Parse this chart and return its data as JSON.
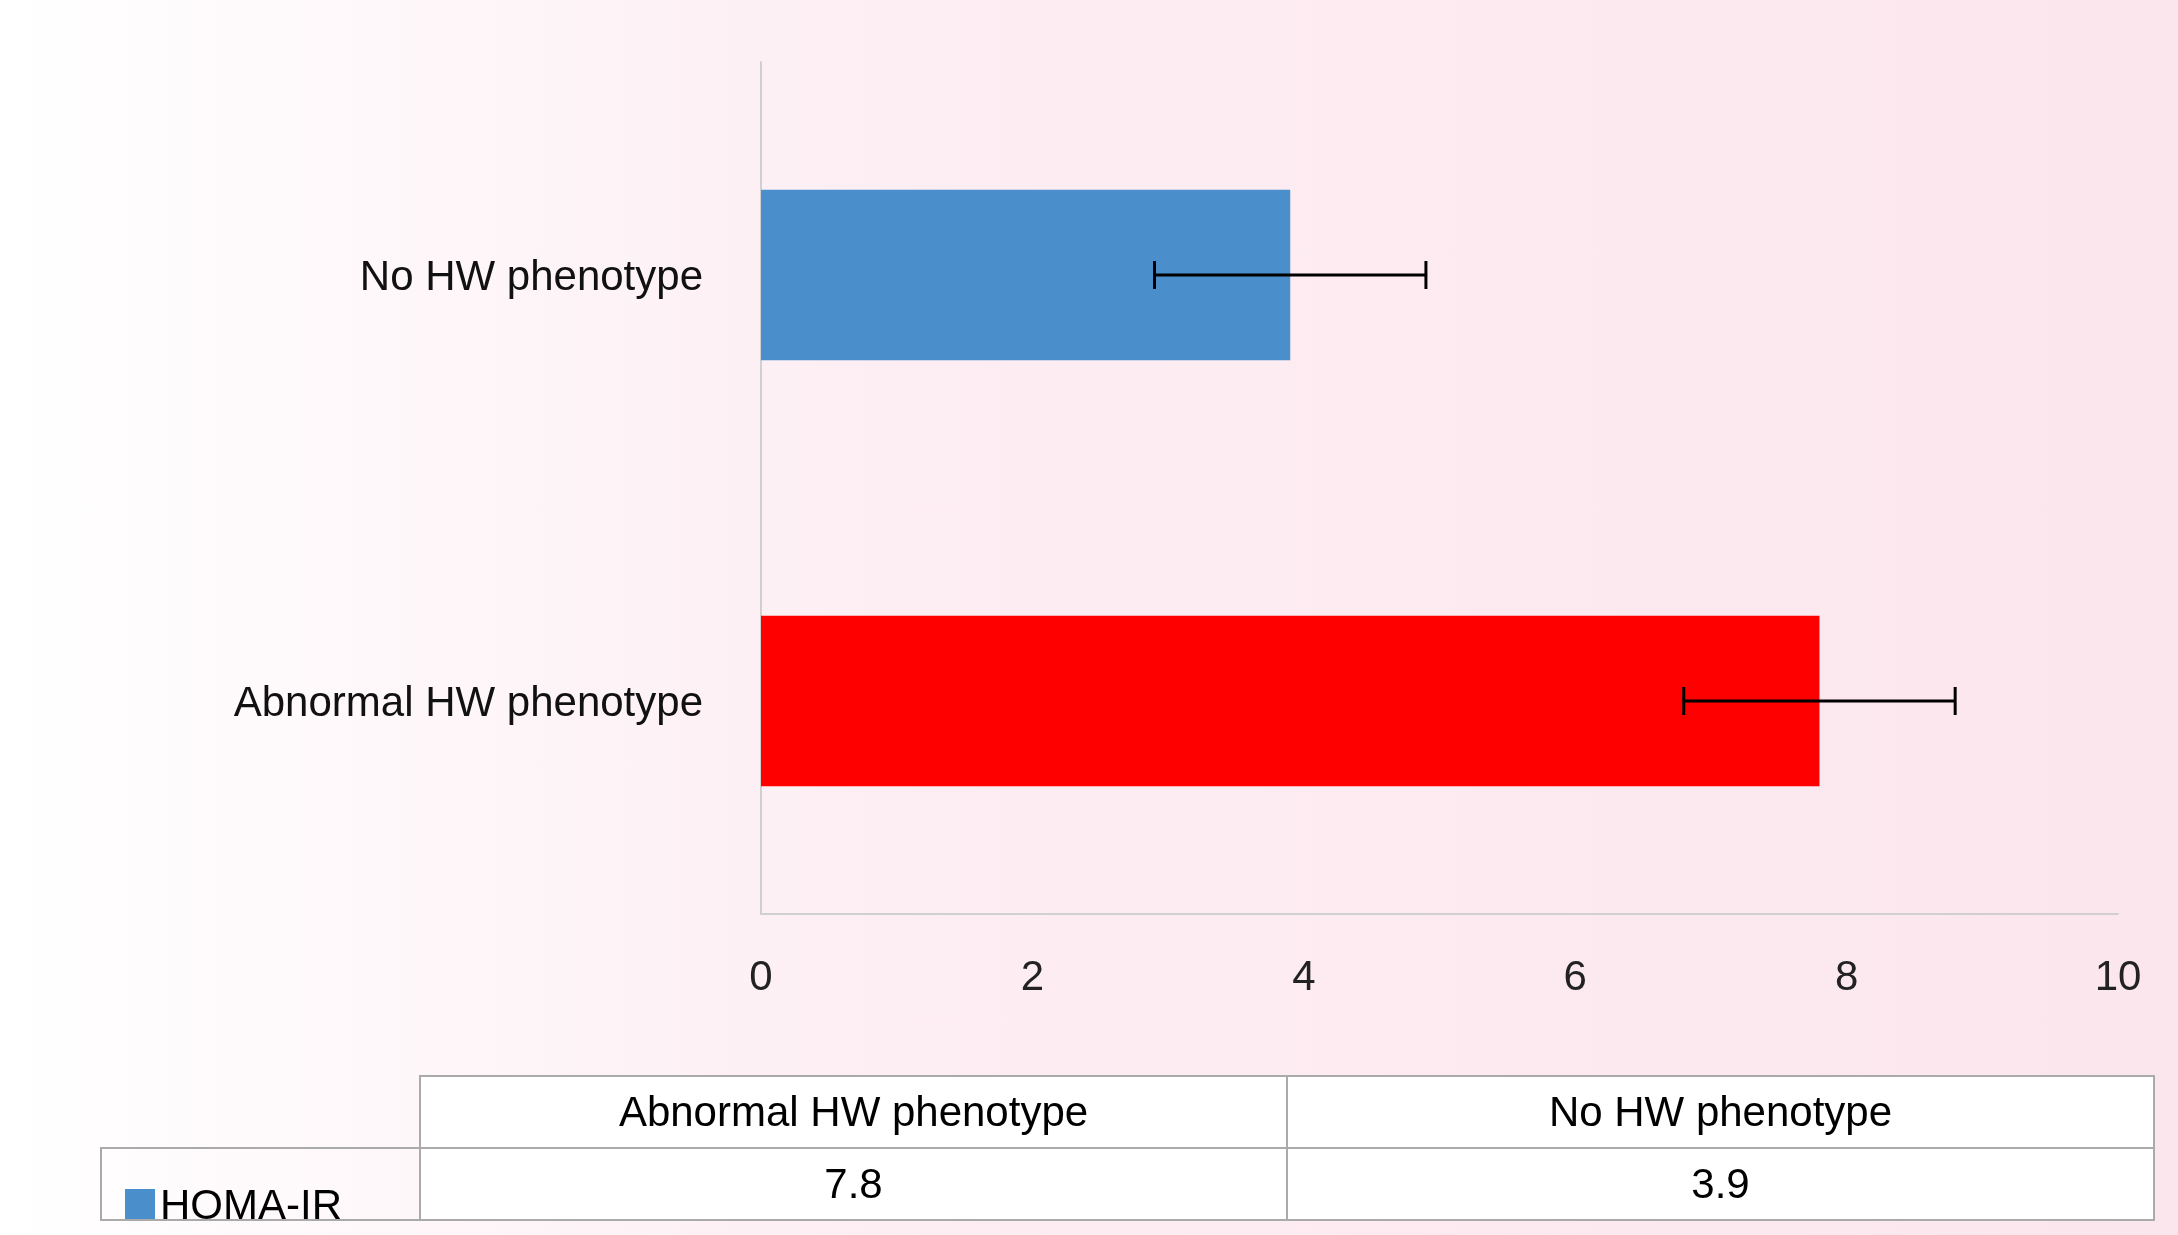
{
  "chart_data": {
    "type": "bar",
    "orientation": "horizontal",
    "categories": [
      "No HW phenotype",
      "Abnormal HW phenotype"
    ],
    "series": [
      {
        "name": "HOMA-IR",
        "color": "#4a8fcc",
        "colors": [
          "#4a8fcc",
          "#ff0000"
        ],
        "values": [
          3.9,
          7.8
        ],
        "errors": [
          1,
          1
        ]
      }
    ],
    "xlim": [
      0,
      10
    ],
    "xticks": [
      0,
      2,
      4,
      6,
      8,
      10
    ],
    "grid": false,
    "legend": "bottom",
    "annotations": [
      "7.8",
      "3.9"
    ]
  }
}
